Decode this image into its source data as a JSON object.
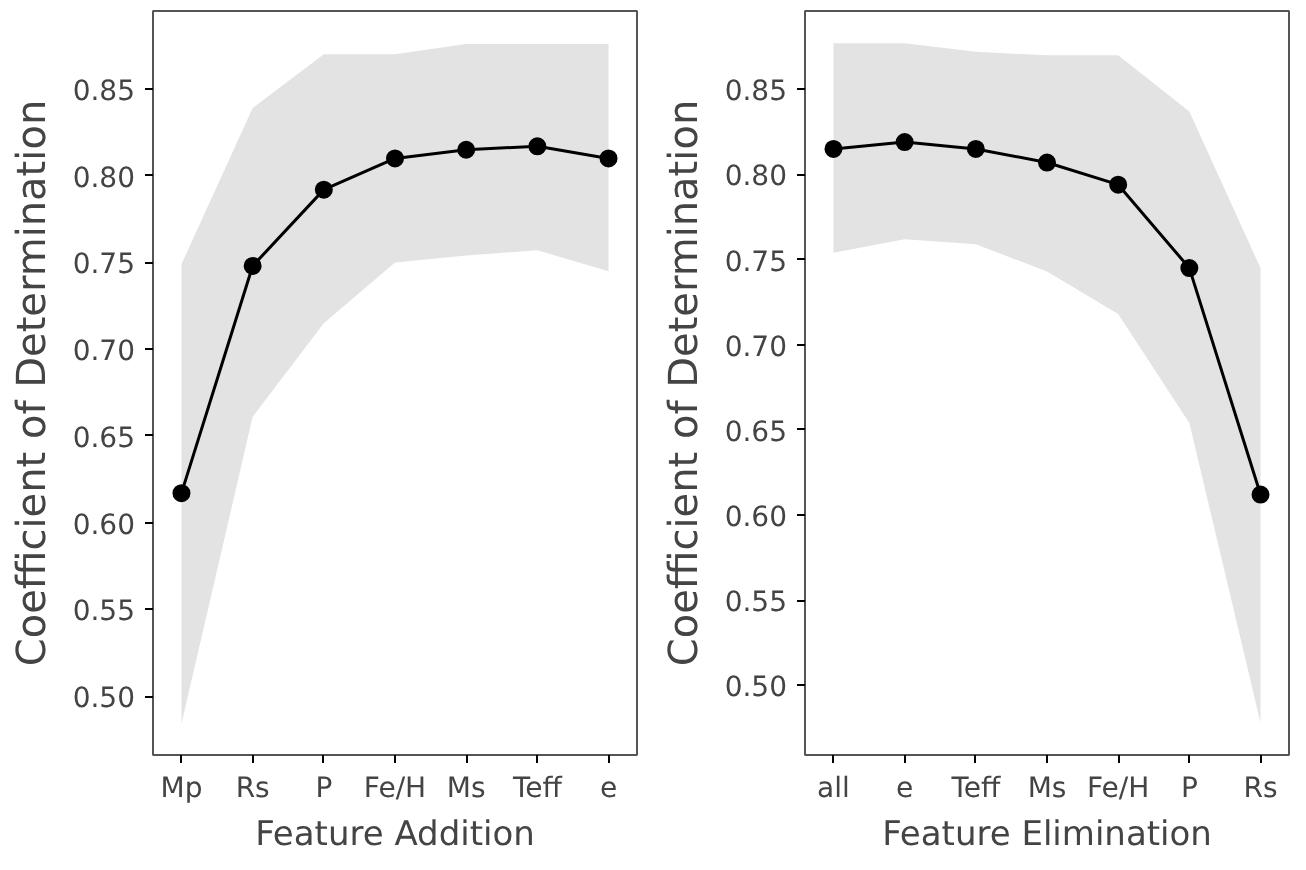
{
  "chart_data": [
    {
      "type": "line",
      "xlabel": "Feature Addition",
      "ylabel": "Coefficient of Determination",
      "categories": [
        "Mp",
        "Rs",
        "P",
        "Fe/H",
        "Ms",
        "Teff",
        "e"
      ],
      "series": [
        {
          "color": "#000000",
          "values": [
            0.617,
            0.748,
            0.792,
            0.81,
            0.815,
            0.817,
            0.81
          ],
          "lower": [
            0.484,
            0.661,
            0.715,
            0.75,
            0.754,
            0.757,
            0.745
          ],
          "upper": [
            0.749,
            0.839,
            0.87,
            0.87,
            0.876,
            0.876,
            0.876
          ]
        }
      ],
      "ylim": [
        0.466,
        0.895
      ],
      "yticks": [
        {
          "value": 0.5,
          "label": "0.50"
        },
        {
          "value": 0.55,
          "label": "0.55"
        },
        {
          "value": 0.6,
          "label": "0.60"
        },
        {
          "value": 0.65,
          "label": "0.65"
        },
        {
          "value": 0.7,
          "label": "0.70"
        },
        {
          "value": 0.75,
          "label": "0.75"
        },
        {
          "value": 0.8,
          "label": "0.80"
        },
        {
          "value": 0.85,
          "label": "0.85"
        }
      ],
      "marker": "circle",
      "grid": false
    },
    {
      "type": "line",
      "xlabel": "Feature Elimination",
      "ylabel": "Coefficient of Determination",
      "categories": [
        "all",
        "e",
        "Teff",
        "Ms",
        "Fe/H",
        "P",
        "Rs"
      ],
      "series": [
        {
          "color": "#000000",
          "values": [
            0.815,
            0.819,
            0.815,
            0.807,
            0.794,
            0.745,
            0.612
          ],
          "lower": [
            0.754,
            0.762,
            0.759,
            0.743,
            0.718,
            0.654,
            0.478
          ],
          "upper": [
            0.877,
            0.877,
            0.872,
            0.87,
            0.87,
            0.837,
            0.745
          ]
        }
      ],
      "ylim": [
        0.459,
        0.896
      ],
      "yticks": [
        {
          "value": 0.5,
          "label": "0.50"
        },
        {
          "value": 0.55,
          "label": "0.55"
        },
        {
          "value": 0.6,
          "label": "0.60"
        },
        {
          "value": 0.65,
          "label": "0.65"
        },
        {
          "value": 0.7,
          "label": "0.70"
        },
        {
          "value": 0.75,
          "label": "0.75"
        },
        {
          "value": 0.8,
          "label": "0.80"
        },
        {
          "value": 0.85,
          "label": "0.85"
        }
      ],
      "marker": "circle",
      "grid": false
    }
  ]
}
